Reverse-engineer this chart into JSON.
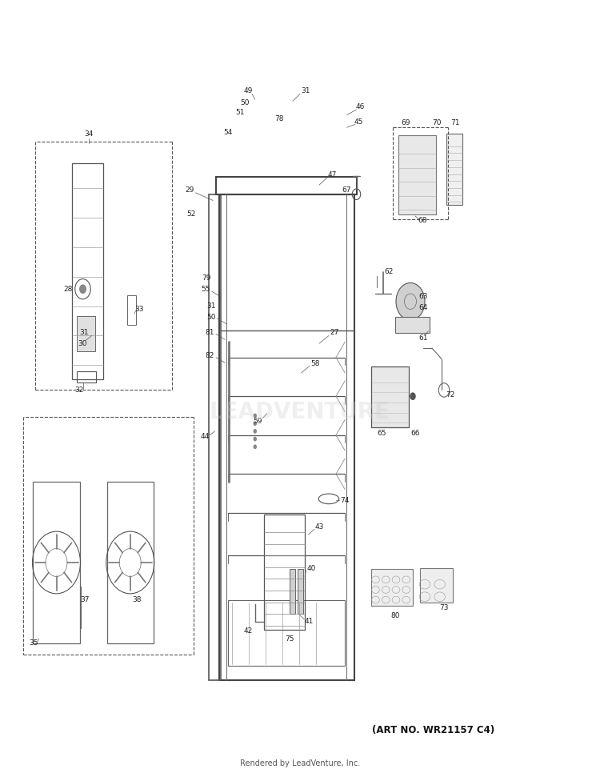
{
  "bg_color": "#ffffff",
  "art_no_text": "(ART NO. WR21157 C4)",
  "footer_text": "Rendered by LeadVenture, Inc.",
  "watermark_text": "LEADVENTURE",
  "fig_width": 7.5,
  "fig_height": 9.71,
  "dpi": 100
}
